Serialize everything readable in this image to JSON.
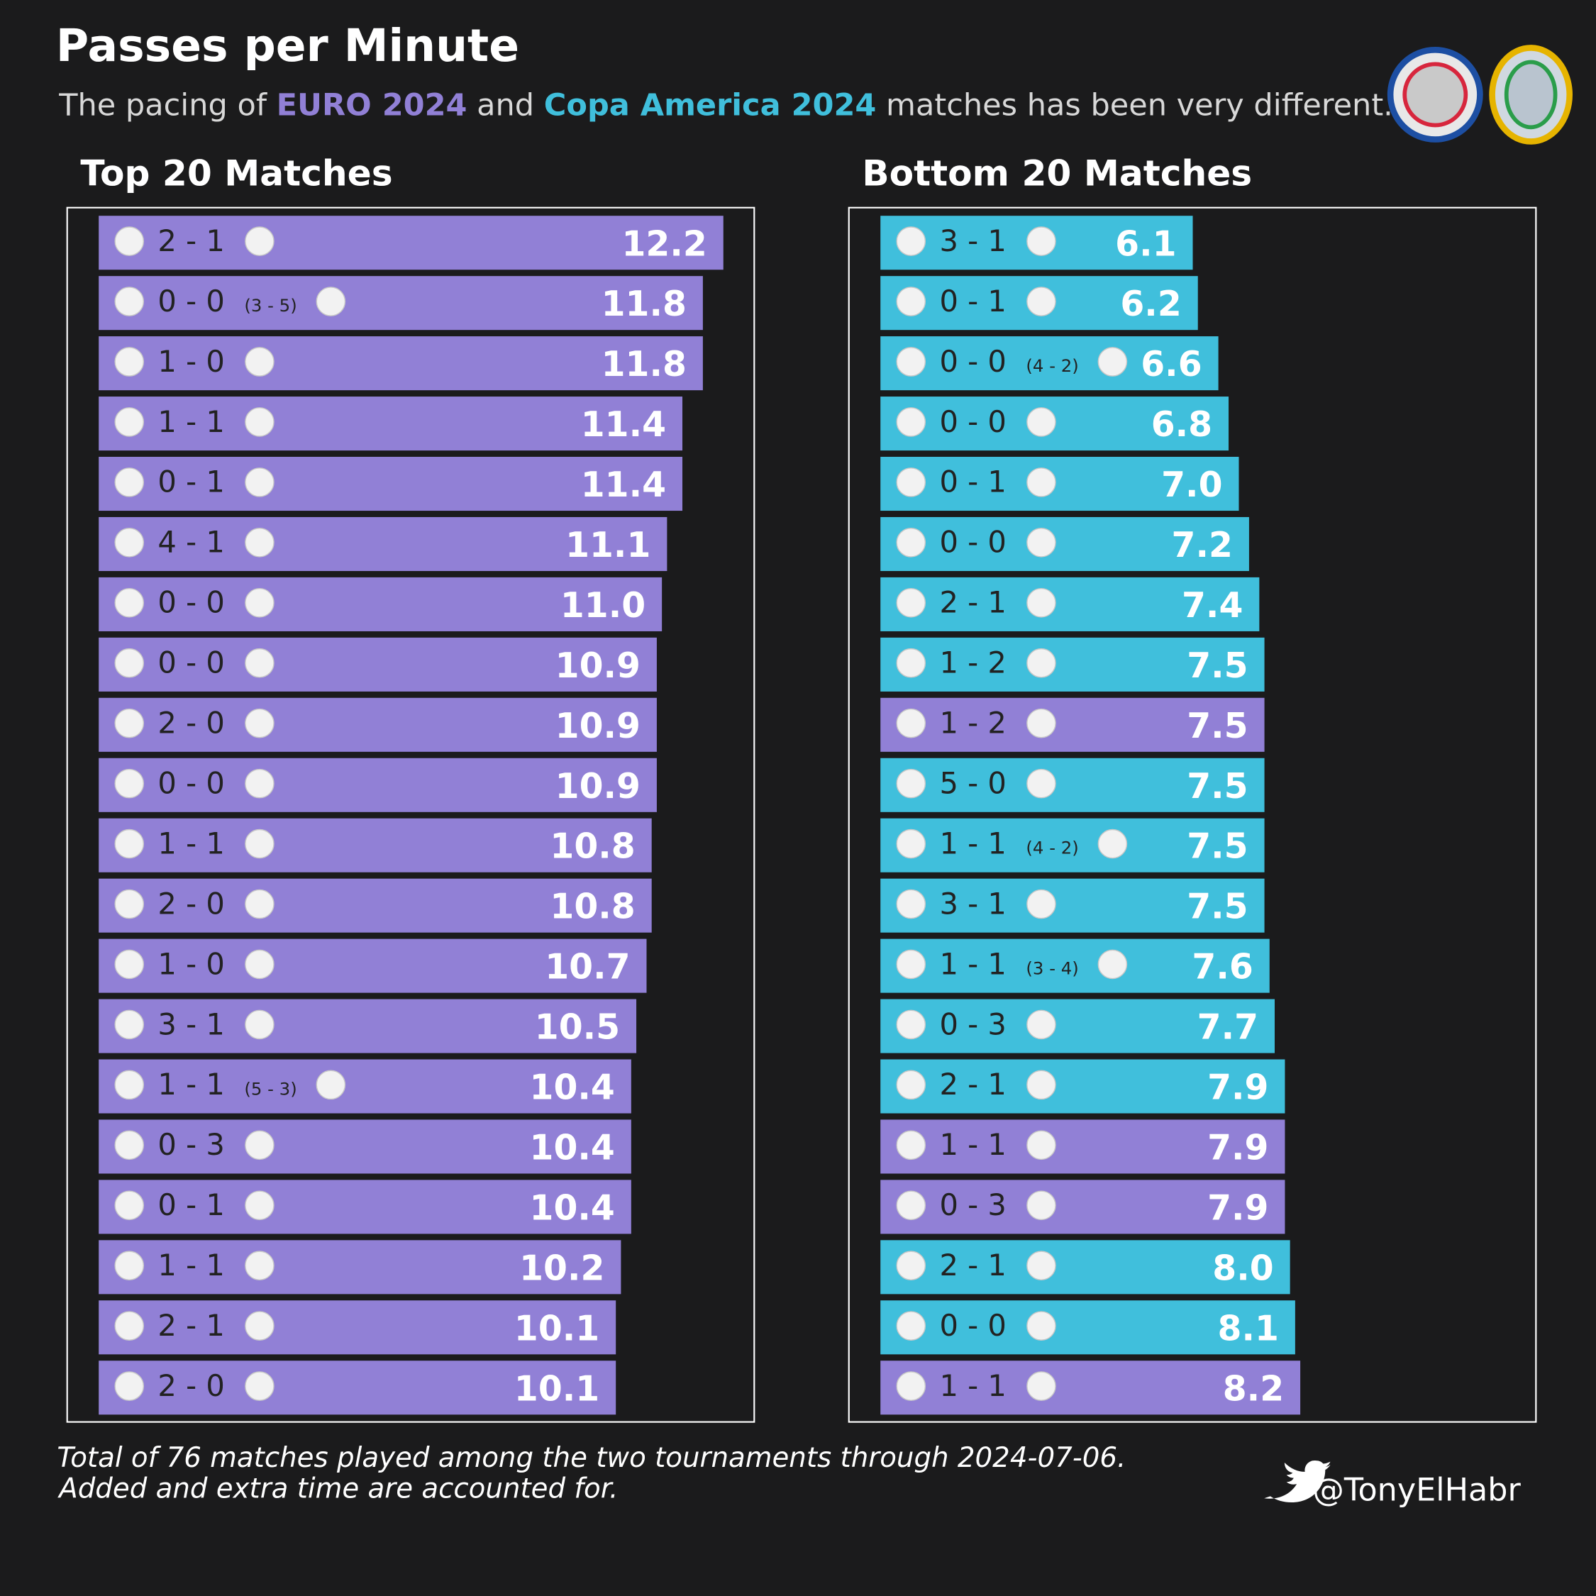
{
  "title": "Passes per Minute",
  "subtitle": [
    "The pacing of ",
    "EURO 2024",
    " and ",
    "Copa America 2024",
    " matches has been very different."
  ],
  "subtitle_colors": [
    "#d8d8d8",
    "#9180d6",
    "#d8d8d8",
    "#40bfdc",
    "#d8d8d8"
  ],
  "footer": [
    "Total of 76 matches played among the two tournaments through 2024-07-06.",
    "Added and extra time are accounted for."
  ],
  "credit": "@TonyElHabr",
  "chart_data": [
    {
      "type": "bar",
      "orientation": "horizontal",
      "title": "Top 20 Matches",
      "categories": [
        "2 - 1",
        "0 - 0",
        "1 - 0",
        "1 - 1",
        "0 - 1",
        "4 - 1",
        "0 - 0",
        "0 - 0",
        "2 - 0",
        "0 - 0",
        "1 - 1",
        "2 - 0",
        "1 - 0",
        "3 - 1",
        "1 - 1",
        "0 - 3",
        "0 - 1",
        "1 - 1",
        "2 - 1",
        "2 - 0"
      ],
      "penalties": [
        null,
        "(3 - 5)",
        null,
        null,
        null,
        null,
        null,
        null,
        null,
        null,
        null,
        null,
        null,
        null,
        "(5 - 3)",
        null,
        null,
        null,
        null,
        null
      ],
      "values": [
        12.2,
        11.8,
        11.8,
        11.4,
        11.4,
        11.1,
        11.0,
        10.9,
        10.9,
        10.9,
        10.8,
        10.8,
        10.7,
        10.5,
        10.4,
        10.4,
        10.4,
        10.2,
        10.1,
        10.1
      ],
      "value_labels": [
        "12.2",
        "11.8",
        "11.8",
        "11.4",
        "11.4",
        "11.1",
        "11.0",
        "10.9",
        "10.9",
        "10.9",
        "10.8",
        "10.8",
        "10.7",
        "10.5",
        "10.4",
        "10.4",
        "10.4",
        "10.2",
        "10.1",
        "10.1"
      ],
      "colors": [
        "#9180d6",
        "#9180d6",
        "#9180d6",
        "#9180d6",
        "#9180d6",
        "#9180d6",
        "#9180d6",
        "#9180d6",
        "#9180d6",
        "#9180d6",
        "#9180d6",
        "#9180d6",
        "#9180d6",
        "#9180d6",
        "#9180d6",
        "#9180d6",
        "#9180d6",
        "#9180d6",
        "#9180d6",
        "#9180d6"
      ]
    },
    {
      "type": "bar",
      "orientation": "horizontal",
      "title": "Bottom 20 Matches",
      "categories": [
        "3 - 1",
        "0 - 1",
        "0 - 0",
        "0 - 0",
        "0 - 1",
        "0 - 0",
        "2 - 1",
        "1 - 2",
        "1 - 2",
        "5 - 0",
        "1 - 1",
        "3 - 1",
        "1 - 1",
        "0 - 3",
        "2 - 1",
        "1 - 1",
        "0 - 3",
        "2 - 1",
        "0 - 0",
        "1 - 1"
      ],
      "penalties": [
        null,
        null,
        "(4 - 2)",
        null,
        null,
        null,
        null,
        null,
        null,
        null,
        "(4 - 2)",
        null,
        "(3 - 4)",
        null,
        null,
        null,
        null,
        null,
        null,
        null
      ],
      "values": [
        6.1,
        6.2,
        6.6,
        6.8,
        7.0,
        7.2,
        7.4,
        7.5,
        7.5,
        7.5,
        7.5,
        7.5,
        7.6,
        7.7,
        7.9,
        7.9,
        7.9,
        8.0,
        8.1,
        8.2
      ],
      "value_labels": [
        "6.1",
        "6.2",
        "6.6",
        "6.8",
        "7.0",
        "7.2",
        "7.4",
        "7.5",
        "7.5",
        "7.5",
        "7.5",
        "7.5",
        "7.6",
        "7.7",
        "7.9",
        "7.9",
        "7.9",
        "8.0",
        "8.1",
        "8.2"
      ],
      "colors": [
        "#40bfdc",
        "#40bfdc",
        "#40bfdc",
        "#40bfdc",
        "#40bfdc",
        "#40bfdc",
        "#40bfdc",
        "#40bfdc",
        "#9180d6",
        "#40bfdc",
        "#40bfdc",
        "#40bfdc",
        "#40bfdc",
        "#40bfdc",
        "#40bfdc",
        "#9180d6",
        "#9180d6",
        "#40bfdc",
        "#40bfdc",
        "#9180d6"
      ]
    }
  ]
}
